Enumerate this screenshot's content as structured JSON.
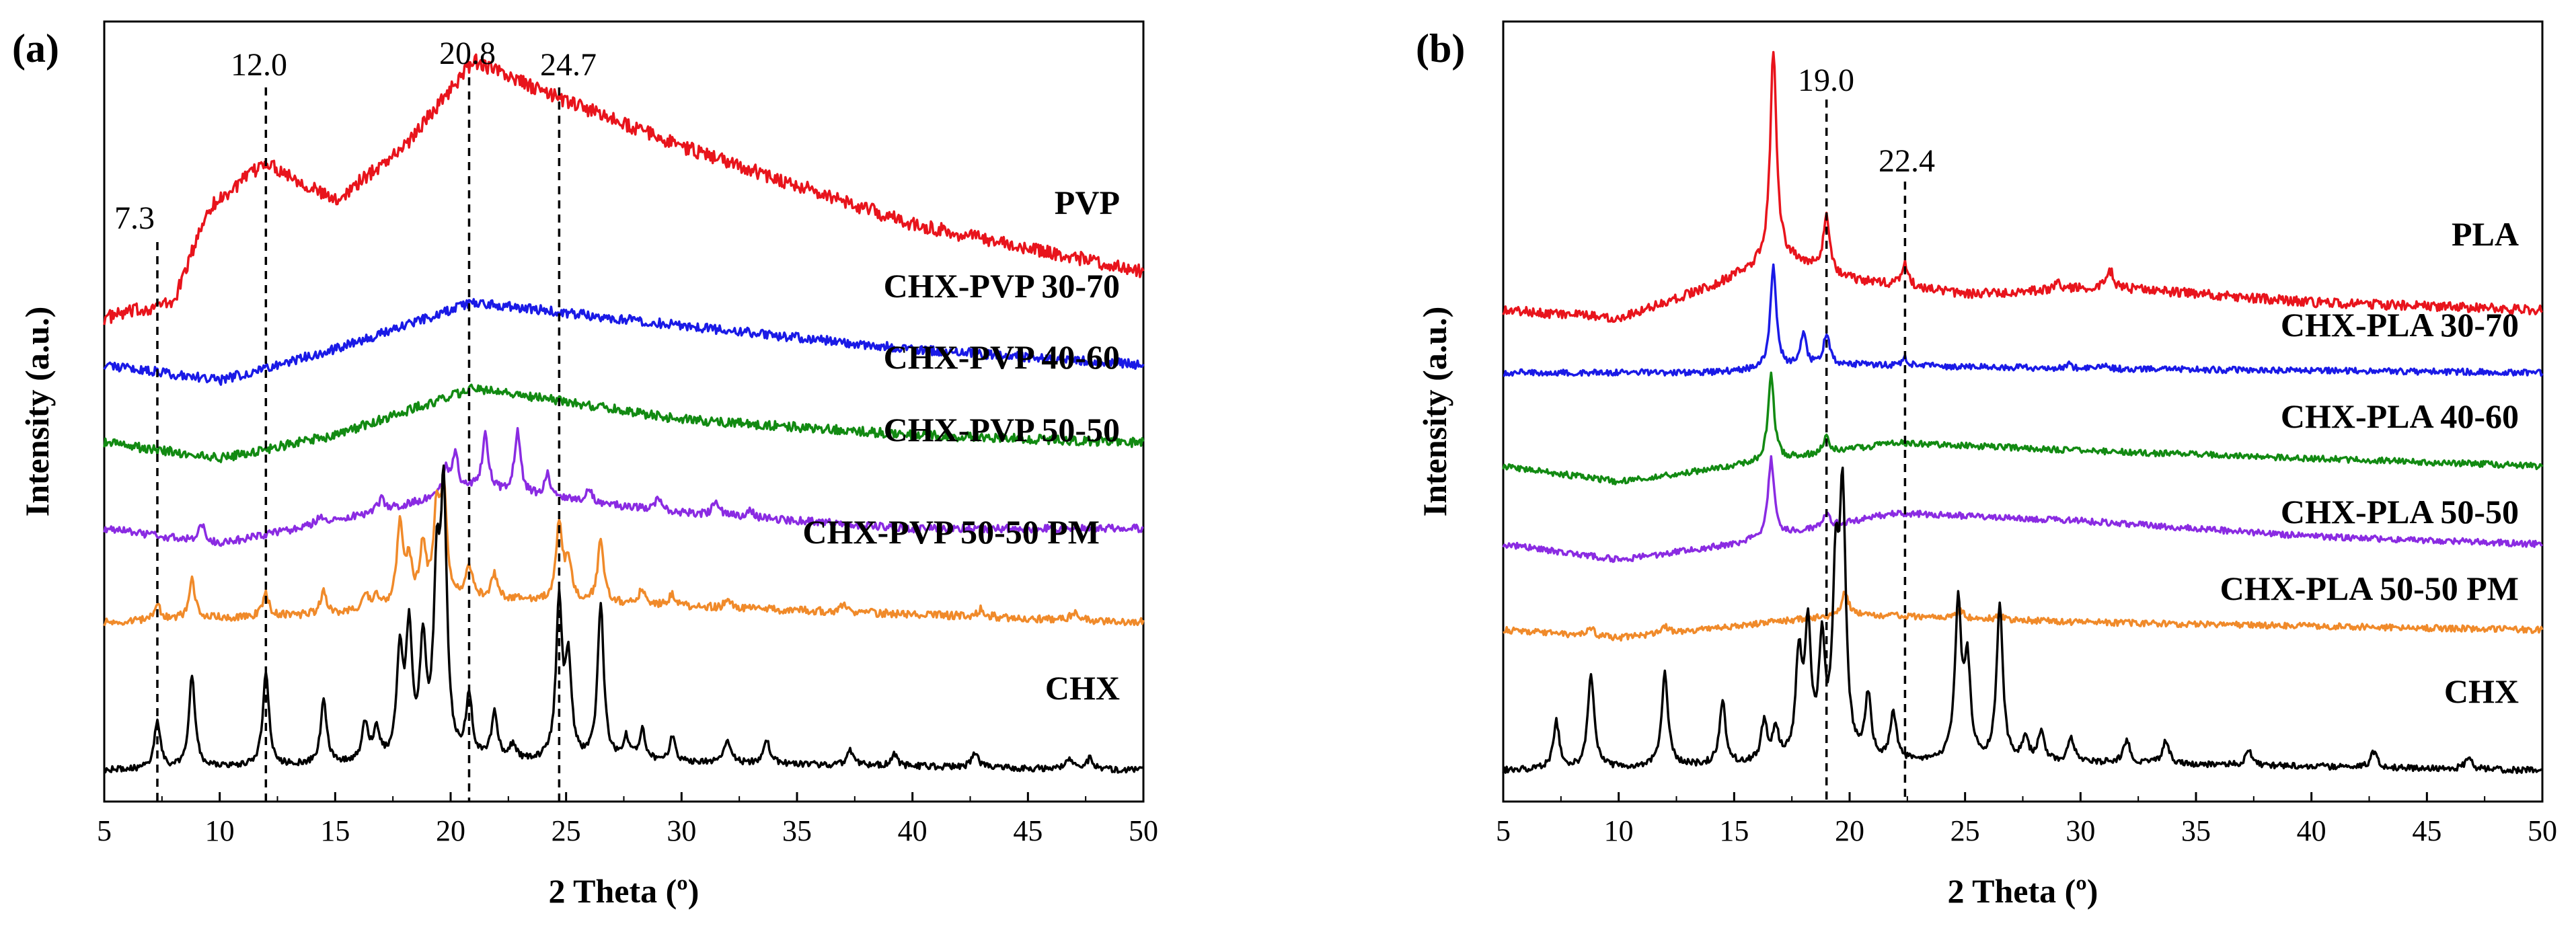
{
  "chart_data": [
    {
      "panel": "(a)",
      "type": "line",
      "xlabel": "2 Theta (º)",
      "ylabel": "Intensity (a.u.)",
      "xlim": [
        5,
        50
      ],
      "xticks": [
        5,
        10,
        15,
        20,
        25,
        30,
        35,
        40,
        45,
        50
      ],
      "ylim": [
        0,
        100
      ],
      "reference_lines": [
        {
          "x": 7.3,
          "label": "7.3"
        },
        {
          "x": 12.0,
          "label": "12.0"
        },
        {
          "x": 20.8,
          "label": "20.8"
        },
        {
          "x": 24.7,
          "label": "24.7"
        }
      ],
      "series": [
        {
          "name": "PVP",
          "color": "#e8141c",
          "offset": 62,
          "baseline": 0,
          "trend": [
            [
              5,
              0
            ],
            [
              8,
              2
            ],
            [
              9.5,
              14
            ],
            [
              12,
              20
            ],
            [
              15,
              15
            ],
            [
              18,
              22
            ],
            [
              21,
              33
            ],
            [
              24,
              29
            ],
            [
              30,
              22
            ],
            [
              40,
              12
            ],
            [
              50,
              6
            ]
          ],
          "peaks": [],
          "noise": 0.9
        },
        {
          "name": "CHX-PVP 30-70",
          "color": "#1a1ae6",
          "offset": 56,
          "baseline": 0,
          "trend": [
            [
              5,
              0
            ],
            [
              10,
              -2
            ],
            [
              15,
              2
            ],
            [
              21,
              8
            ],
            [
              30,
              5
            ],
            [
              40,
              2
            ],
            [
              50,
              0
            ]
          ],
          "peaks": [],
          "noise": 0.6
        },
        {
          "name": "CHX-PVP 40-60",
          "color": "#128a12",
          "offset": 46,
          "baseline": 0,
          "trend": [
            [
              5,
              0
            ],
            [
              10,
              -2
            ],
            [
              15,
              1
            ],
            [
              21,
              7
            ],
            [
              30,
              3
            ],
            [
              40,
              1
            ],
            [
              50,
              0
            ]
          ],
          "peaks": [],
          "noise": 0.6
        },
        {
          "name": "CHX-PVP 50-50",
          "color": "#8a2be2",
          "offset": 35,
          "baseline": 0,
          "trend": [
            [
              5,
              0
            ],
            [
              10,
              -2
            ],
            [
              15,
              1
            ],
            [
              21,
              5
            ],
            [
              30,
              2
            ],
            [
              40,
              0
            ],
            [
              50,
              0
            ]
          ],
          "peaks": [
            [
              9.2,
              2.5
            ],
            [
              14.3,
              1.0
            ],
            [
              17,
              1.5
            ],
            [
              19.8,
              3
            ],
            [
              20.2,
              5
            ],
            [
              21.5,
              7
            ],
            [
              22.9,
              8
            ],
            [
              24.2,
              3
            ],
            [
              26,
              1.5
            ],
            [
              29,
              1.5
            ],
            [
              31.5,
              2
            ],
            [
              33,
              1
            ]
          ],
          "noise": 0.5
        },
        {
          "name": "CHX-PVP 50-50 PM",
          "color": "#f08a2a",
          "offset": 23,
          "baseline": 0,
          "trend": [
            [
              5,
              0
            ],
            [
              15,
              1
            ],
            [
              21,
              3
            ],
            [
              30,
              2
            ],
            [
              40,
              1
            ],
            [
              50,
              0
            ]
          ],
          "peaks": [
            [
              7.3,
              2
            ],
            [
              8.8,
              5
            ],
            [
              12,
              3
            ],
            [
              14.5,
              3
            ],
            [
              16.3,
              2
            ],
            [
              16.8,
              1.5
            ],
            [
              17.8,
              10
            ],
            [
              18.2,
              5
            ],
            [
              18.8,
              7
            ],
            [
              19.4,
              11
            ],
            [
              19.7,
              13
            ],
            [
              20.8,
              4
            ],
            [
              21.9,
              3
            ],
            [
              24.7,
              10
            ],
            [
              25.1,
              5
            ],
            [
              26.5,
              8
            ],
            [
              28.3,
              2
            ],
            [
              29.6,
              1.5
            ],
            [
              32,
              1
            ],
            [
              37,
              1
            ],
            [
              43,
              1
            ],
            [
              47,
              1
            ]
          ],
          "noise": 0.5
        },
        {
          "name": "CHX",
          "color": "#000000",
          "offset": 4,
          "baseline": 0,
          "trend": [
            [
              5,
              0
            ],
            [
              20,
              1
            ],
            [
              30,
              1
            ],
            [
              40,
              0.5
            ],
            [
              50,
              0
            ]
          ],
          "peaks": [
            [
              7.3,
              6
            ],
            [
              8.8,
              12
            ],
            [
              12,
              12
            ],
            [
              14.5,
              8
            ],
            [
              16.3,
              5
            ],
            [
              16.8,
              4
            ],
            [
              17.8,
              13
            ],
            [
              18.2,
              16
            ],
            [
              18.8,
              14
            ],
            [
              19.4,
              22
            ],
            [
              19.7,
              32
            ],
            [
              20.8,
              8
            ],
            [
              21.9,
              6
            ],
            [
              22.7,
              2
            ],
            [
              24.7,
              20
            ],
            [
              25.1,
              12
            ],
            [
              26.5,
              20
            ],
            [
              27.6,
              3
            ],
            [
              28.3,
              4
            ],
            [
              29.6,
              3
            ],
            [
              32,
              3
            ],
            [
              33.7,
              3
            ],
            [
              37.3,
              2
            ],
            [
              39.2,
              1.5
            ],
            [
              42.7,
              2
            ],
            [
              46.8,
              1.5
            ],
            [
              47.7,
              1.5
            ]
          ],
          "noise": 0.4
        }
      ]
    },
    {
      "panel": "(b)",
      "type": "line",
      "xlabel": "2 Theta (º)",
      "ylabel": "Intensity (a.u.)",
      "xlim": [
        5,
        50
      ],
      "xticks": [
        5,
        10,
        15,
        20,
        25,
        30,
        35,
        40,
        45,
        50
      ],
      "ylim": [
        0,
        100
      ],
      "reference_lines": [
        {
          "x": 19.0,
          "label": "19.0"
        },
        {
          "x": 22.4,
          "label": "22.4"
        }
      ],
      "series": [
        {
          "name": "PLA",
          "color": "#e8141c",
          "offset": 63,
          "baseline": 0,
          "trend": [
            [
              5,
              0
            ],
            [
              10,
              -1
            ],
            [
              14,
              3
            ],
            [
              17,
              7
            ],
            [
              20,
              4
            ],
            [
              25,
              2
            ],
            [
              31,
              3
            ],
            [
              40,
              1
            ],
            [
              50,
              0
            ]
          ],
          "peaks": [
            [
              16.7,
              27
            ],
            [
              19.0,
              7
            ],
            [
              22.4,
              3
            ],
            [
              29,
              1
            ],
            [
              31.3,
              2
            ]
          ],
          "noise": 0.6
        },
        {
          "name": "CHX-PLA 30-70",
          "color": "#1a1ae6",
          "offset": 55,
          "baseline": 0,
          "trend": [
            [
              5,
              0
            ],
            [
              14,
              0
            ],
            [
              20,
              1
            ],
            [
              30,
              0.5
            ],
            [
              50,
              0
            ]
          ],
          "peaks": [
            [
              16.7,
              13
            ],
            [
              18.0,
              4
            ],
            [
              19.0,
              4
            ],
            [
              22.4,
              1
            ],
            [
              29.5,
              0.5
            ],
            [
              31,
              0.5
            ]
          ],
          "noise": 0.4
        },
        {
          "name": "CHX-PLA 40-60",
          "color": "#128a12",
          "offset": 43,
          "baseline": 0,
          "trend": [
            [
              5,
              0
            ],
            [
              10,
              -2
            ],
            [
              15,
              0
            ],
            [
              22,
              3
            ],
            [
              30,
              2
            ],
            [
              40,
              1
            ],
            [
              50,
              0
            ]
          ],
          "peaks": [
            [
              16.6,
              11
            ],
            [
              19.0,
              2
            ]
          ],
          "noise": 0.4
        },
        {
          "name": "CHX-PLA 50-50",
          "color": "#8a2be2",
          "offset": 33,
          "baseline": 0,
          "trend": [
            [
              5,
              0
            ],
            [
              10,
              -2
            ],
            [
              15,
              0
            ],
            [
              22,
              4
            ],
            [
              30,
              3
            ],
            [
              40,
              1
            ],
            [
              50,
              0
            ]
          ],
          "peaks": [
            [
              16.6,
              10
            ],
            [
              19.0,
              1.5
            ]
          ],
          "noise": 0.4
        },
        {
          "name": "CHX-PLA 50-50 PM",
          "color": "#f08a2a",
          "offset": 22,
          "baseline": 0,
          "trend": [
            [
              5,
              0
            ],
            [
              10,
              -1
            ],
            [
              20,
              2
            ],
            [
              30,
              1
            ],
            [
              50,
              0
            ]
          ],
          "peaks": [
            [
              8.8,
              1
            ],
            [
              12,
              1
            ],
            [
              19.8,
              3
            ],
            [
              24.8,
              1
            ],
            [
              26.5,
              0.5
            ]
          ],
          "noise": 0.4
        },
        {
          "name": "CHX",
          "color": "#000000",
          "offset": 4,
          "baseline": 0,
          "trend": [
            [
              5,
              0
            ],
            [
              20,
              1
            ],
            [
              30,
              1
            ],
            [
              50,
              0
            ]
          ],
          "peaks": [
            [
              7.3,
              6
            ],
            [
              8.8,
              12
            ],
            [
              12,
              12
            ],
            [
              14.5,
              8
            ],
            [
              16.3,
              5
            ],
            [
              16.8,
              4
            ],
            [
              17.8,
              13
            ],
            [
              18.2,
              16
            ],
            [
              18.8,
              14
            ],
            [
              19.4,
              22
            ],
            [
              19.7,
              32
            ],
            [
              20.8,
              8
            ],
            [
              21.9,
              6
            ],
            [
              24.7,
              20
            ],
            [
              25.1,
              12
            ],
            [
              26.5,
              20
            ],
            [
              27.6,
              3
            ],
            [
              28.3,
              4
            ],
            [
              29.6,
              3
            ],
            [
              32,
              3
            ],
            [
              33.7,
              3
            ],
            [
              37.3,
              2
            ],
            [
              42.7,
              2
            ],
            [
              46.8,
              1.5
            ]
          ],
          "noise": 0.4
        }
      ]
    }
  ]
}
